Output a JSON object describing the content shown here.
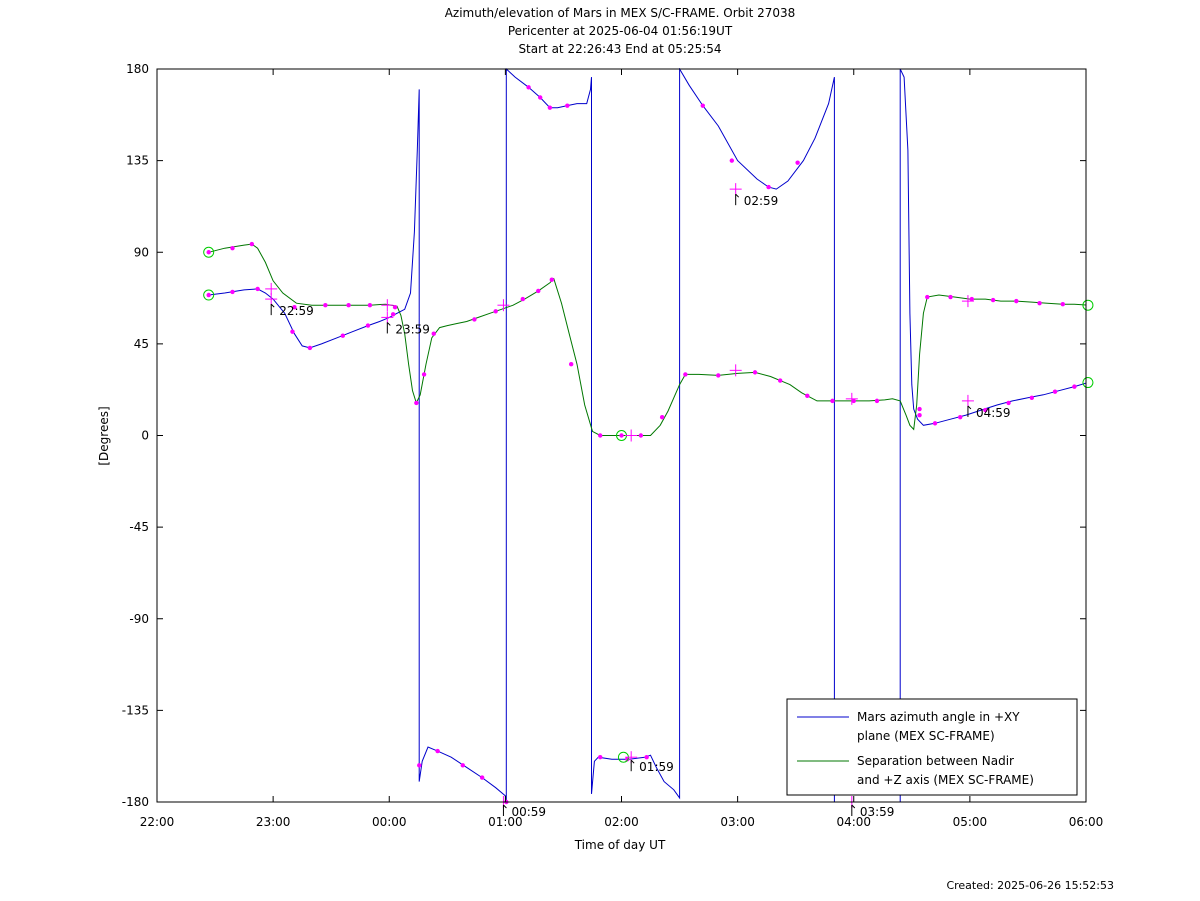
{
  "chart_data": {
    "type": "line",
    "title_lines": [
      "Azimuth/elevation of Mars in MEX S/C-FRAME.  Orbit 27038",
      "Pericenter at 2025-06-04 01:56:19UT",
      "Start at 22:26:43 End at 05:25:54"
    ],
    "xlabel": "Time of day UT",
    "ylabel": "[Degrees]",
    "xlim": [
      0,
      480
    ],
    "ylim": [
      -180,
      180
    ],
    "x_unit_note": "minutes after 22:00",
    "x_ticks": [
      0,
      60,
      120,
      180,
      240,
      300,
      360,
      420,
      480
    ],
    "x_tick_labels": [
      "22:00",
      "23:00",
      "00:00",
      "01:00",
      "02:00",
      "03:00",
      "04:00",
      "05:00",
      "06:00"
    ],
    "y_ticks": [
      -180,
      -135,
      -90,
      -45,
      0,
      45,
      90,
      135,
      180
    ],
    "y_tick_labels": [
      "-180",
      "-135",
      "-90",
      "-45",
      "0",
      "45",
      "90",
      "135",
      "180"
    ],
    "grid": false,
    "legend_position": "bottom-right",
    "legend": [
      {
        "lines": [
          "Mars azimuth angle in +XY",
          "plane (MEX SC-FRAME)"
        ],
        "color": "#0000cc"
      },
      {
        "lines": [
          "Separation between Nadir",
          "and +Z axis (MEX SC-FRAME)"
        ],
        "color": "#007700"
      }
    ],
    "series": [
      {
        "color": "#0000cc",
        "segments": [
          [
            [
              26.7,
              69
            ],
            [
              35,
              70
            ],
            [
              45,
              71.5
            ],
            [
              52,
              72
            ],
            [
              56,
              70
            ],
            [
              60,
              67
            ],
            [
              66,
              60
            ],
            [
              71,
              50
            ],
            [
              75,
              44
            ],
            [
              79,
              43
            ],
            [
              85,
              45
            ],
            [
              93,
              48
            ],
            [
              101,
              51
            ],
            [
              109,
              54
            ],
            [
              115,
              56
            ],
            [
              120,
              58
            ],
            [
              124,
              60
            ],
            [
              128,
              62
            ],
            [
              131,
              70
            ],
            [
              133,
              100
            ],
            [
              134.5,
              140
            ],
            [
              135.5,
              170
            ]
          ],
          [
            [
              135.5,
              -170
            ],
            [
              137,
              -160
            ],
            [
              140,
              -153
            ],
            [
              145,
              -155
            ],
            [
              152,
              -158
            ],
            [
              160,
              -163
            ],
            [
              168,
              -168
            ],
            [
              175,
              -173
            ],
            [
              180,
              -177
            ],
            [
              180.5,
              -180
            ]
          ],
          [
            [
              180.5,
              180
            ],
            [
              185,
              176
            ],
            [
              192,
              171
            ],
            [
              198,
              166
            ],
            [
              203,
              161
            ],
            [
              207,
              161
            ],
            [
              212,
              162
            ],
            [
              217,
              163
            ],
            [
              222,
              163
            ],
            [
              224,
              170
            ],
            [
              224.5,
              176
            ]
          ],
          [
            [
              224.5,
              -176
            ],
            [
              226,
              -160
            ],
            [
              228,
              -158
            ],
            [
              235,
              -159
            ],
            [
              244,
              -159
            ],
            [
              252,
              -158
            ],
            [
              255,
              -157
            ],
            [
              258,
              -163
            ],
            [
              262,
              -170
            ],
            [
              267,
              -174
            ],
            [
              270,
              -178
            ]
          ],
          [
            [
              270,
              180
            ],
            [
              275,
              172
            ],
            [
              282,
              162
            ],
            [
              290,
              152
            ],
            [
              300,
              135
            ],
            [
              310,
              126
            ],
            [
              316,
              122
            ],
            [
              320,
              121
            ],
            [
              326,
              125
            ],
            [
              334,
              135
            ],
            [
              340,
              146
            ],
            [
              347,
              163
            ],
            [
              350,
              176
            ]
          ],
          [
            [
              350,
              -180
            ]
          ],
          [
            [
              384,
              -180
            ]
          ],
          [
            [
              384,
              180
            ],
            [
              386,
              176
            ],
            [
              388,
              140
            ],
            [
              389,
              60
            ],
            [
              390,
              25
            ],
            [
              391,
              13
            ],
            [
              393,
              8
            ],
            [
              396,
              5
            ],
            [
              402,
              6
            ],
            [
              410,
              8
            ],
            [
              418,
              10
            ],
            [
              426,
              12.5
            ],
            [
              434,
              15
            ],
            [
              442,
              17
            ],
            [
              450,
              18.5
            ],
            [
              458,
              20
            ],
            [
              466,
              22
            ],
            [
              474,
              24
            ],
            [
              481,
              26
            ]
          ]
        ]
      },
      {
        "color": "#007700",
        "segments": [
          [
            [
              26.7,
              90
            ],
            [
              35,
              92
            ],
            [
              45,
              93.5
            ],
            [
              49,
              94
            ],
            [
              52,
              92
            ],
            [
              56,
              85
            ],
            [
              60,
              76
            ],
            [
              65,
              70
            ],
            [
              72,
              65
            ],
            [
              80,
              64
            ],
            [
              90,
              64
            ],
            [
              100,
              64
            ],
            [
              110,
              64
            ],
            [
              118,
              64.5
            ],
            [
              124,
              63.5
            ],
            [
              126,
              59
            ],
            [
              128,
              50
            ],
            [
              130,
              35
            ],
            [
              132,
              22
            ],
            [
              134,
              16
            ],
            [
              136,
              20
            ],
            [
              139,
              35
            ],
            [
              142,
              48
            ],
            [
              146,
              53
            ],
            [
              150,
              54
            ],
            [
              155,
              55
            ],
            [
              160,
              56
            ],
            [
              166,
              58
            ],
            [
              172,
              60
            ],
            [
              178,
              62
            ],
            [
              184,
              64
            ],
            [
              190,
              67
            ],
            [
              197,
              71
            ],
            [
              203,
              75
            ],
            [
              205,
              77
            ],
            [
              209,
              65
            ],
            [
              213,
              50
            ],
            [
              217,
              35
            ],
            [
              221,
              15
            ],
            [
              225,
              2
            ],
            [
              229,
              0
            ],
            [
              240,
              0
            ],
            [
              250,
              0
            ],
            [
              255,
              0
            ],
            [
              260,
              5
            ],
            [
              264,
              12
            ],
            [
              270,
              25
            ],
            [
              273,
              30
            ],
            [
              280,
              30
            ],
            [
              290,
              29.5
            ],
            [
              300,
              30.5
            ],
            [
              309,
              31
            ],
            [
              317,
              29
            ],
            [
              327,
              25
            ],
            [
              333,
              21
            ],
            [
              341,
              17
            ],
            [
              348,
              17
            ],
            [
              355,
              17
            ],
            [
              362,
              17
            ],
            [
              368,
              17
            ],
            [
              376,
              17.5
            ],
            [
              380,
              18
            ],
            [
              384,
              17
            ],
            [
              387,
              10
            ],
            [
              389,
              5
            ],
            [
              391,
              3
            ],
            [
              392.5,
              15
            ],
            [
              394,
              40
            ],
            [
              396,
              60
            ],
            [
              398,
              68
            ],
            [
              404,
              69
            ],
            [
              412,
              68
            ],
            [
              420,
              67
            ],
            [
              428,
              67
            ],
            [
              436,
              66
            ],
            [
              444,
              66
            ],
            [
              452,
              65.5
            ],
            [
              460,
              65
            ],
            [
              468,
              64.5
            ],
            [
              474,
              64.5
            ],
            [
              481,
              64
            ]
          ]
        ]
      }
    ],
    "markers": {
      "dot_color": "#ff00ff",
      "dots": [
        [
          26.7,
          69
        ],
        [
          39,
          70.5
        ],
        [
          52,
          72
        ],
        [
          70,
          51
        ],
        [
          79,
          43
        ],
        [
          96,
          49
        ],
        [
          109,
          54
        ],
        [
          122,
          59.5
        ],
        [
          135.5,
          -162
        ],
        [
          145,
          -155
        ],
        [
          158,
          -162
        ],
        [
          168,
          -168
        ],
        [
          180.5,
          -180
        ],
        [
          192,
          171
        ],
        [
          198,
          166
        ],
        [
          203,
          161
        ],
        [
          212,
          162
        ],
        [
          229,
          -158
        ],
        [
          243,
          -159
        ],
        [
          253,
          -158
        ],
        [
          282,
          162
        ],
        [
          297,
          135
        ],
        [
          316,
          122
        ],
        [
          331,
          134
        ],
        [
          26.7,
          90
        ],
        [
          39,
          92
        ],
        [
          49,
          94
        ],
        [
          71,
          63
        ],
        [
          87,
          64
        ],
        [
          99,
          64
        ],
        [
          110,
          64
        ],
        [
          123,
          63
        ],
        [
          134,
          16
        ],
        [
          138,
          30
        ],
        [
          143,
          50
        ],
        [
          164,
          57
        ],
        [
          175,
          61
        ],
        [
          189,
          67
        ],
        [
          197,
          71
        ],
        [
          204,
          76.5
        ],
        [
          214,
          35
        ],
        [
          229,
          0
        ],
        [
          240,
          0
        ],
        [
          250,
          0
        ],
        [
          261,
          9
        ],
        [
          273,
          30
        ],
        [
          290,
          29.5
        ],
        [
          309,
          31
        ],
        [
          322,
          27
        ],
        [
          336,
          19.5
        ],
        [
          349,
          17
        ],
        [
          360,
          17
        ],
        [
          372,
          17
        ],
        [
          394,
          10
        ],
        [
          394,
          13
        ],
        [
          402,
          6
        ],
        [
          415,
          9
        ],
        [
          428,
          12.5
        ],
        [
          440,
          16
        ],
        [
          452,
          18.5
        ],
        [
          464,
          21.5
        ],
        [
          474,
          24
        ],
        [
          398,
          68
        ],
        [
          410,
          68
        ],
        [
          421,
          67
        ],
        [
          432,
          66.5
        ],
        [
          444,
          66
        ],
        [
          456,
          65
        ],
        [
          468,
          64.5
        ]
      ],
      "circles": [
        [
          26.7,
          69
        ],
        [
          26.7,
          90
        ],
        [
          241,
          -158
        ],
        [
          240,
          0
        ],
        [
          481,
          26
        ],
        [
          481,
          64
        ]
      ],
      "crosses": [
        [
          59,
          72
        ],
        [
          59,
          67
        ],
        [
          119,
          58
        ],
        [
          119,
          64
        ],
        [
          179,
          -180
        ],
        [
          179,
          64
        ],
        [
          245,
          -158
        ],
        [
          245,
          0
        ],
        [
          299,
          121
        ],
        [
          299,
          32
        ],
        [
          359,
          -180
        ],
        [
          359,
          18
        ],
        [
          419,
          17
        ],
        [
          419,
          66
        ]
      ],
      "annotations": [
        {
          "x": 59,
          "y": 66,
          "text": "22:59"
        },
        {
          "x": 119,
          "y": 57,
          "text": "23:59"
        },
        {
          "x": 179,
          "y": -180,
          "text": "00:59"
        },
        {
          "x": 245,
          "y": -158,
          "text": "01:59"
        },
        {
          "x": 299,
          "y": 120,
          "text": "02:59"
        },
        {
          "x": 359,
          "y": -180,
          "text": "03:59"
        },
        {
          "x": 419,
          "y": 16,
          "text": "04:59"
        }
      ]
    }
  },
  "footer": {
    "created": "Created: 2025-06-26 15:52:53"
  }
}
